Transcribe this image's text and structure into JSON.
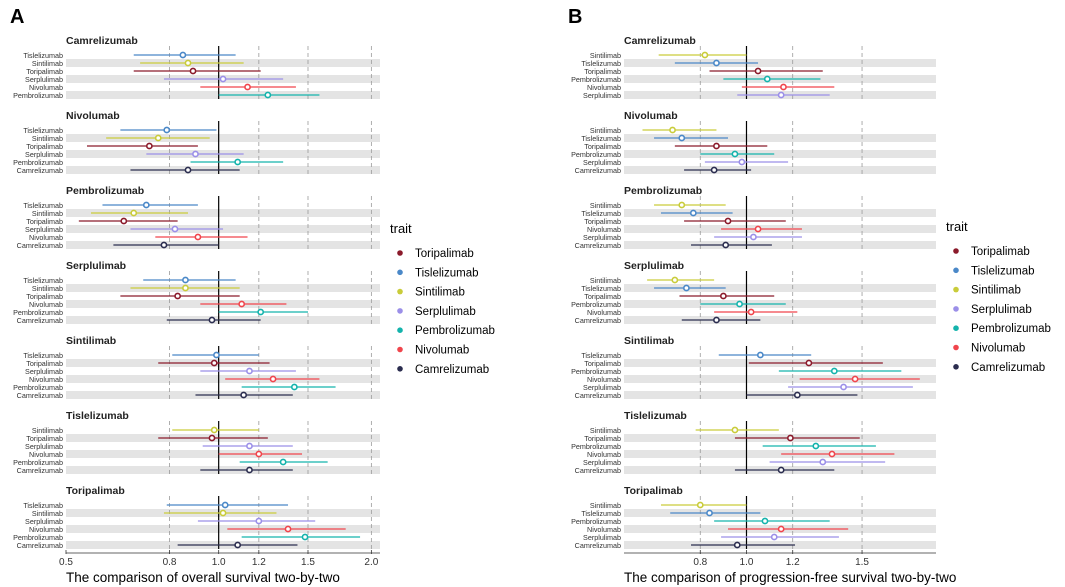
{
  "colors": {
    "Toripalimab": "#8B1A2B",
    "Tislelizumab": "#4A88C8",
    "Sintilimab": "#C9CC3A",
    "Serplulimab": "#9B8FE8",
    "Pembrolizumab": "#14B3AC",
    "Nivolumab": "#F0454C",
    "Camrelizumab": "#2B2D4F"
  },
  "legend": {
    "title": "trait",
    "items": [
      "Toripalimab",
      "Tislelizumab",
      "Sintilimab",
      "Serplulimab",
      "Pembrolizumab",
      "Nivolumab",
      "Camrelizumab"
    ]
  },
  "chart_data": [
    {
      "panel_label": "A",
      "type": "forest",
      "xlabel": "The comparison of overall survival two-by-two",
      "xscale": "log",
      "xlim": [
        0.5,
        2.08
      ],
      "ref_line": 1.0,
      "xticks": [
        0.5,
        0.8,
        1.0,
        1.2,
        1.5,
        2.0
      ],
      "xtick_labels": [
        "0.5",
        "0.8",
        "1.0",
        "1.2",
        "1.5",
        "2.0"
      ],
      "grid": [
        0.8,
        1.2,
        1.5,
        2.0
      ],
      "groups": [
        {
          "title": "Camrelizumab",
          "rows": [
            {
              "label": "Tislelizumab",
              "est": 0.85,
              "lo": 0.68,
              "hi": 1.08
            },
            {
              "label": "Sintilimab",
              "est": 0.87,
              "lo": 0.7,
              "hi": 1.12
            },
            {
              "label": "Toripalimab",
              "est": 0.89,
              "lo": 0.68,
              "hi": 1.21
            },
            {
              "label": "Serplulimab",
              "est": 1.02,
              "lo": 0.78,
              "hi": 1.34
            },
            {
              "label": "Nivolumab",
              "est": 1.14,
              "lo": 0.92,
              "hi": 1.42
            },
            {
              "label": "Pembrolizumab",
              "est": 1.25,
              "lo": 1.0,
              "hi": 1.58
            }
          ]
        },
        {
          "title": "Nivolumab",
          "rows": [
            {
              "label": "Tislelizumab",
              "est": 0.79,
              "lo": 0.64,
              "hi": 0.99
            },
            {
              "label": "Sintilimab",
              "est": 0.76,
              "lo": 0.6,
              "hi": 0.96
            },
            {
              "label": "Toripalimab",
              "est": 0.73,
              "lo": 0.55,
              "hi": 0.91
            },
            {
              "label": "Serplulimab",
              "est": 0.9,
              "lo": 0.72,
              "hi": 1.12
            },
            {
              "label": "Pembrolizumab",
              "est": 1.09,
              "lo": 0.88,
              "hi": 1.34
            },
            {
              "label": "Camrelizumab",
              "est": 0.87,
              "lo": 0.67,
              "hi": 1.1
            }
          ]
        },
        {
          "title": "Pembrolizumab",
          "rows": [
            {
              "label": "Tislelizumab",
              "est": 0.72,
              "lo": 0.59,
              "hi": 0.91
            },
            {
              "label": "Sintilimab",
              "est": 0.68,
              "lo": 0.56,
              "hi": 0.87
            },
            {
              "label": "Toripalimab",
              "est": 0.65,
              "lo": 0.53,
              "hi": 0.83
            },
            {
              "label": "Serplulimab",
              "est": 0.82,
              "lo": 0.67,
              "hi": 1.02
            },
            {
              "label": "Nivolumab",
              "est": 0.91,
              "lo": 0.75,
              "hi": 1.14
            },
            {
              "label": "Camrelizumab",
              "est": 0.78,
              "lo": 0.62,
              "hi": 1.0
            }
          ]
        },
        {
          "title": "Serplulimab",
          "rows": [
            {
              "label": "Tislelizumab",
              "est": 0.86,
              "lo": 0.71,
              "hi": 1.08
            },
            {
              "label": "Sintilimab",
              "est": 0.86,
              "lo": 0.67,
              "hi": 1.1
            },
            {
              "label": "Toripalimab",
              "est": 0.83,
              "lo": 0.64,
              "hi": 1.1
            },
            {
              "label": "Nivolumab",
              "est": 1.11,
              "lo": 0.92,
              "hi": 1.36
            },
            {
              "label": "Pembrolizumab",
              "est": 1.21,
              "lo": 1.0,
              "hi": 1.5
            },
            {
              "label": "Camrelizumab",
              "est": 0.97,
              "lo": 0.79,
              "hi": 1.21
            }
          ]
        },
        {
          "title": "Sintilimab",
          "rows": [
            {
              "label": "Tislelizumab",
              "est": 0.99,
              "lo": 0.81,
              "hi": 1.2
            },
            {
              "label": "Toripalimab",
              "est": 0.98,
              "lo": 0.76,
              "hi": 1.26
            },
            {
              "label": "Serplulimab",
              "est": 1.15,
              "lo": 0.92,
              "hi": 1.42
            },
            {
              "label": "Nivolumab",
              "est": 1.28,
              "lo": 1.03,
              "hi": 1.58
            },
            {
              "label": "Pembrolizumab",
              "est": 1.41,
              "lo": 1.11,
              "hi": 1.7
            },
            {
              "label": "Camrelizumab",
              "est": 1.12,
              "lo": 0.9,
              "hi": 1.4
            }
          ]
        },
        {
          "title": "Tislelizumab",
          "rows": [
            {
              "label": "Sintilimab",
              "est": 0.98,
              "lo": 0.81,
              "hi": 1.2
            },
            {
              "label": "Toripalimab",
              "est": 0.97,
              "lo": 0.76,
              "hi": 1.25
            },
            {
              "label": "Serplulimab",
              "est": 1.15,
              "lo": 0.93,
              "hi": 1.4
            },
            {
              "label": "Nivolumab",
              "est": 1.2,
              "lo": 1.0,
              "hi": 1.46
            },
            {
              "label": "Pembrolizumab",
              "est": 1.34,
              "lo": 1.1,
              "hi": 1.64
            },
            {
              "label": "Camrelizumab",
              "est": 1.15,
              "lo": 0.92,
              "hi": 1.4
            }
          ]
        },
        {
          "title": "Toripalimab",
          "rows": [
            {
              "label": "Tislelizumab",
              "est": 1.03,
              "lo": 0.79,
              "hi": 1.37
            },
            {
              "label": "Sintilimab",
              "est": 1.02,
              "lo": 0.78,
              "hi": 1.3
            },
            {
              "label": "Serplulimab",
              "est": 1.2,
              "lo": 0.91,
              "hi": 1.55
            },
            {
              "label": "Nivolumab",
              "est": 1.37,
              "lo": 1.04,
              "hi": 1.78
            },
            {
              "label": "Pembrolizumab",
              "est": 1.48,
              "lo": 1.11,
              "hi": 1.9
            },
            {
              "label": "Camrelizumab",
              "est": 1.09,
              "lo": 0.83,
              "hi": 1.43
            }
          ]
        }
      ]
    },
    {
      "panel_label": "B",
      "type": "forest",
      "xlabel": "The comparison of progression-free survival two-by-two",
      "xscale": "linear",
      "xlim": [
        0.47,
        1.82
      ],
      "ref_line": 1.0,
      "xticks": [
        0.8,
        1.0,
        1.2,
        1.5
      ],
      "xtick_labels": [
        "0.8",
        "1.0",
        "1.2",
        "1.5"
      ],
      "grid": [
        0.8,
        1.2,
        1.5
      ],
      "groups": [
        {
          "title": "Camrelizumab",
          "rows": [
            {
              "label": "Sintilimab",
              "est": 0.82,
              "lo": 0.62,
              "hi": 1.0
            },
            {
              "label": "Tislelizumab",
              "est": 0.87,
              "lo": 0.69,
              "hi": 1.05
            },
            {
              "label": "Toripalimab",
              "est": 1.05,
              "lo": 0.84,
              "hi": 1.33
            },
            {
              "label": "Pembrolizumab",
              "est": 1.09,
              "lo": 0.9,
              "hi": 1.32
            },
            {
              "label": "Nivolumab",
              "est": 1.16,
              "lo": 0.98,
              "hi": 1.38
            },
            {
              "label": "Serplulimab",
              "est": 1.15,
              "lo": 0.96,
              "hi": 1.36
            }
          ]
        },
        {
          "title": "Nivolumab",
          "rows": [
            {
              "label": "Sintilimab",
              "est": 0.68,
              "lo": 0.55,
              "hi": 0.87
            },
            {
              "label": "Tislelizumab",
              "est": 0.72,
              "lo": 0.6,
              "hi": 0.92
            },
            {
              "label": "Toripalimab",
              "est": 0.87,
              "lo": 0.69,
              "hi": 1.09
            },
            {
              "label": "Pembrolizumab",
              "est": 0.95,
              "lo": 0.8,
              "hi": 1.12
            },
            {
              "label": "Serplulimab",
              "est": 0.98,
              "lo": 0.82,
              "hi": 1.18
            },
            {
              "label": "Camrelizumab",
              "est": 0.86,
              "lo": 0.73,
              "hi": 1.02
            }
          ]
        },
        {
          "title": "Pembrolizumab",
          "rows": [
            {
              "label": "Sintilimab",
              "est": 0.72,
              "lo": 0.6,
              "hi": 0.91
            },
            {
              "label": "Tislelizumab",
              "est": 0.77,
              "lo": 0.63,
              "hi": 0.94
            },
            {
              "label": "Toripalimab",
              "est": 0.92,
              "lo": 0.73,
              "hi": 1.17
            },
            {
              "label": "Nivolumab",
              "est": 1.05,
              "lo": 0.89,
              "hi": 1.24
            },
            {
              "label": "Serplulimab",
              "est": 1.03,
              "lo": 0.86,
              "hi": 1.24
            },
            {
              "label": "Camrelizumab",
              "est": 0.91,
              "lo": 0.76,
              "hi": 1.11
            }
          ]
        },
        {
          "title": "Serplulimab",
          "rows": [
            {
              "label": "Sintilimab",
              "est": 0.69,
              "lo": 0.57,
              "hi": 0.86
            },
            {
              "label": "Tislelizumab",
              "est": 0.74,
              "lo": 0.6,
              "hi": 0.91
            },
            {
              "label": "Toripalimab",
              "est": 0.9,
              "lo": 0.71,
              "hi": 1.12
            },
            {
              "label": "Pembrolizumab",
              "est": 0.97,
              "lo": 0.8,
              "hi": 1.17
            },
            {
              "label": "Nivolumab",
              "est": 1.02,
              "lo": 0.86,
              "hi": 1.22
            },
            {
              "label": "Camrelizumab",
              "est": 0.87,
              "lo": 0.72,
              "hi": 1.06
            }
          ]
        },
        {
          "title": "Sintilimab",
          "rows": [
            {
              "label": "Tislelizumab",
              "est": 1.06,
              "lo": 0.88,
              "hi": 1.28
            },
            {
              "label": "Toripalimab",
              "est": 1.27,
              "lo": 1.01,
              "hi": 1.59
            },
            {
              "label": "Pembrolizumab",
              "est": 1.38,
              "lo": 1.14,
              "hi": 1.67
            },
            {
              "label": "Nivolumab",
              "est": 1.47,
              "lo": 1.23,
              "hi": 1.75
            },
            {
              "label": "Serplulimab",
              "est": 1.42,
              "lo": 1.18,
              "hi": 1.72
            },
            {
              "label": "Camrelizumab",
              "est": 1.22,
              "lo": 1.0,
              "hi": 1.48
            }
          ]
        },
        {
          "title": "Tislelizumab",
          "rows": [
            {
              "label": "Sintilimab",
              "est": 0.95,
              "lo": 0.78,
              "hi": 1.14
            },
            {
              "label": "Toripalimab",
              "est": 1.19,
              "lo": 0.95,
              "hi": 1.49
            },
            {
              "label": "Pembrolizumab",
              "est": 1.3,
              "lo": 1.07,
              "hi": 1.56
            },
            {
              "label": "Nivolumab",
              "est": 1.37,
              "lo": 1.15,
              "hi": 1.64
            },
            {
              "label": "Serplulimab",
              "est": 1.33,
              "lo": 1.1,
              "hi": 1.6
            },
            {
              "label": "Camrelizumab",
              "est": 1.15,
              "lo": 0.95,
              "hi": 1.38
            }
          ]
        }
      ],
      "extra_groups": [
        {
          "title": "Toripalimab",
          "rows": [
            {
              "label": "Sintilimab",
              "est": 0.8,
              "lo": 0.63,
              "hi": 1.0
            },
            {
              "label": "Tislelizumab",
              "est": 0.84,
              "lo": 0.67,
              "hi": 1.06
            },
            {
              "label": "Pembrolizumab",
              "est": 1.08,
              "lo": 0.86,
              "hi": 1.36
            },
            {
              "label": "Nivolumab",
              "est": 1.15,
              "lo": 0.92,
              "hi": 1.44
            },
            {
              "label": "Serplulimab",
              "est": 1.12,
              "lo": 0.89,
              "hi": 1.4
            },
            {
              "label": "Camrelizumab",
              "est": 0.96,
              "lo": 0.76,
              "hi": 1.21
            }
          ]
        }
      ]
    }
  ]
}
